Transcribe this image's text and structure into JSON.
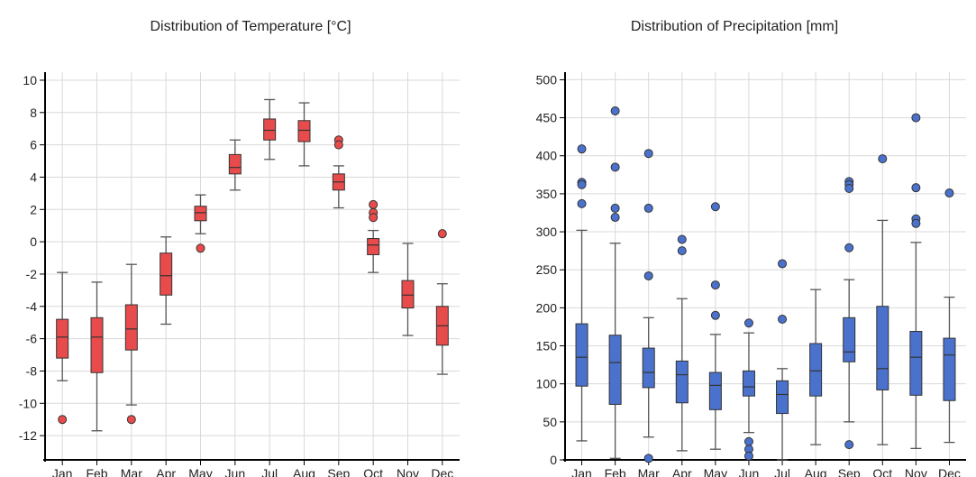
{
  "colors": {
    "temperature_fill": "#e84b4b",
    "precipitation_fill": "#4a72cc",
    "grid": "#d9d9d9",
    "axis": "#000000",
    "whisker": "#555555"
  },
  "chart_data": [
    {
      "type": "box",
      "title": "Distribution of Temperature [°C]",
      "categories": [
        "Jan",
        "Feb",
        "Mar",
        "Apr",
        "May",
        "Jun",
        "Jul",
        "Aug",
        "Sep",
        "Oct",
        "Nov",
        "Dec"
      ],
      "ylim": [
        -13.5,
        10.5
      ],
      "yticks": [
        -12,
        -10,
        -8,
        -6,
        -4,
        -2,
        0,
        2,
        4,
        6,
        8,
        10
      ],
      "grid": true,
      "boxes": [
        {
          "min": -8.6,
          "q1": -7.2,
          "median": -5.9,
          "q3": -4.8,
          "max": -1.9,
          "outliers": [
            -11.0
          ]
        },
        {
          "min": -11.7,
          "q1": -8.1,
          "median": -5.9,
          "q3": -4.7,
          "max": -2.5,
          "outliers": []
        },
        {
          "min": -10.1,
          "q1": -6.7,
          "median": -5.4,
          "q3": -3.9,
          "max": -1.4,
          "outliers": [
            -11.0
          ]
        },
        {
          "min": -5.1,
          "q1": -3.3,
          "median": -2.1,
          "q3": -0.7,
          "max": 0.3,
          "outliers": []
        },
        {
          "min": 0.5,
          "q1": 1.3,
          "median": 1.8,
          "q3": 2.2,
          "max": 2.9,
          "outliers": [
            -0.4
          ]
        },
        {
          "min": 3.2,
          "q1": 4.2,
          "median": 4.6,
          "q3": 5.4,
          "max": 6.3,
          "outliers": []
        },
        {
          "min": 5.1,
          "q1": 6.3,
          "median": 6.9,
          "q3": 7.6,
          "max": 8.8,
          "outliers": []
        },
        {
          "min": 4.7,
          "q1": 6.2,
          "median": 6.9,
          "q3": 7.5,
          "max": 8.6,
          "outliers": []
        },
        {
          "min": 2.1,
          "q1": 3.2,
          "median": 3.7,
          "q3": 4.2,
          "max": 4.7,
          "outliers": [
            6.3,
            6.0
          ]
        },
        {
          "min": -1.9,
          "q1": -0.8,
          "median": -0.2,
          "q3": 0.2,
          "max": 0.7,
          "outliers": [
            2.3,
            1.8,
            1.5
          ]
        },
        {
          "min": -5.8,
          "q1": -4.1,
          "median": -3.3,
          "q3": -2.4,
          "max": -0.1,
          "outliers": []
        },
        {
          "min": -8.2,
          "q1": -6.4,
          "median": -5.2,
          "q3": -4.0,
          "max": -2.6,
          "outliers": [
            0.5
          ]
        }
      ]
    },
    {
      "type": "box",
      "title": "Distribution of Precipitation [mm]",
      "categories": [
        "Jan",
        "Feb",
        "Mar",
        "Apr",
        "May",
        "Jun",
        "Jul",
        "Aug",
        "Sep",
        "Oct",
        "Nov",
        "Dec"
      ],
      "ylim": [
        0,
        510
      ],
      "yticks": [
        0,
        50,
        100,
        150,
        200,
        250,
        300,
        350,
        400,
        450,
        500
      ],
      "grid": true,
      "boxes": [
        {
          "min": 25,
          "q1": 97,
          "median": 135,
          "q3": 179,
          "max": 302,
          "outliers": [
            409,
            365,
            362,
            337
          ]
        },
        {
          "min": 2,
          "q1": 73,
          "median": 128,
          "q3": 164,
          "max": 285,
          "outliers": [
            459,
            385,
            331,
            319
          ]
        },
        {
          "min": 30,
          "q1": 95,
          "median": 115,
          "q3": 147,
          "max": 187,
          "outliers": [
            403,
            331,
            242,
            2
          ]
        },
        {
          "min": 12,
          "q1": 75,
          "median": 112,
          "q3": 130,
          "max": 212,
          "outliers": [
            290,
            275
          ]
        },
        {
          "min": 14,
          "q1": 66,
          "median": 98,
          "q3": 115,
          "max": 165,
          "outliers": [
            333,
            230,
            190
          ]
        },
        {
          "min": 36,
          "q1": 84,
          "median": 96,
          "q3": 117,
          "max": 167,
          "outliers": [
            180,
            24,
            14,
            5
          ]
        },
        {
          "min": 0,
          "q1": 61,
          "median": 86,
          "q3": 104,
          "max": 120,
          "outliers": [
            258,
            185
          ]
        },
        {
          "min": 20,
          "q1": 84,
          "median": 117,
          "q3": 153,
          "max": 224,
          "outliers": []
        },
        {
          "min": 50,
          "q1": 129,
          "median": 142,
          "q3": 187,
          "max": 237,
          "outliers": [
            366,
            362,
            357,
            279,
            20
          ]
        },
        {
          "min": 20,
          "q1": 92,
          "median": 120,
          "q3": 202,
          "max": 315,
          "outliers": [
            396
          ]
        },
        {
          "min": 15,
          "q1": 85,
          "median": 135,
          "q3": 169,
          "max": 286,
          "outliers": [
            450,
            358,
            317,
            311
          ]
        },
        {
          "min": 23,
          "q1": 78,
          "median": 138,
          "q3": 160,
          "max": 214,
          "outliers": [
            351
          ]
        }
      ]
    }
  ]
}
